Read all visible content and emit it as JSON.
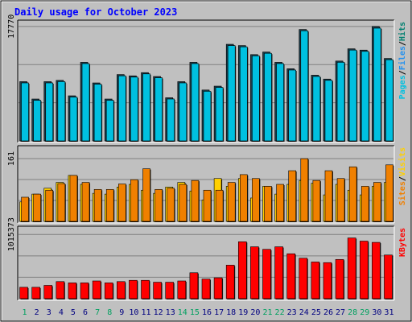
{
  "chart_data": {
    "type": "bar",
    "title": "Daily usage for October 2023",
    "categories": [
      "1",
      "2",
      "3",
      "4",
      "5",
      "6",
      "7",
      "8",
      "9",
      "10",
      "11",
      "12",
      "13",
      "14",
      "15",
      "16",
      "17",
      "18",
      "19",
      "20",
      "21",
      "22",
      "23",
      "24",
      "25",
      "26",
      "27",
      "28",
      "29",
      "30",
      "31"
    ],
    "weekend_days": [
      "1",
      "7",
      "8",
      "14",
      "15",
      "21",
      "22",
      "28",
      "29"
    ],
    "colors": {
      "pages": "#00c0e0",
      "files": "#2090f0",
      "hits": "#008070",
      "sites": "#f08000",
      "visits": "#ffd000",
      "kbytes": "#ff0000",
      "background": "#c0c0c0",
      "title": "#0000ff",
      "weekday_label": "#000080",
      "weekend_label": "#00a060"
    },
    "panels": [
      {
        "id": "hits-panel",
        "ytick_label": "17770",
        "ylim": [
          0,
          18500
        ],
        "ytick_value": 17770,
        "legend": [
          {
            "text": "Pages",
            "color": "#00c0e0"
          },
          {
            "text": "/",
            "color": "#000000"
          },
          {
            "text": "Files",
            "color": "#2090f0"
          },
          {
            "text": "/",
            "color": "#000000"
          },
          {
            "text": "Hits",
            "color": "#008070"
          }
        ],
        "series": [
          {
            "key": "hits",
            "color": "#1a3c4a",
            "values": [
              9200,
              6500,
              9200,
              9400,
              7000,
              12200,
              9000,
              6500,
              10300,
              10100,
              10600,
              10000,
              6700,
              9200,
              12200,
              7900,
              8500,
              15000,
              14800,
              13400,
              13800,
              12200,
              11200,
              17300,
              10200,
              9600,
              12400,
              14300,
              14100,
              17770,
              12800
            ]
          },
          {
            "key": "files",
            "color": "#00c0e0",
            "values": [
              9000,
              6300,
              9000,
              9200,
              6800,
              12000,
              8800,
              6300,
              10100,
              9900,
              10400,
              9800,
              6500,
              9000,
              12000,
              7700,
              8300,
              14800,
              14600,
              13200,
              13600,
              12000,
              11000,
              17100,
              10000,
              9400,
              12200,
              14100,
              13900,
              17500,
              12600
            ]
          }
        ]
      },
      {
        "id": "visits-panel",
        "ytick_label": "161",
        "ylim": [
          0,
          190
        ],
        "ytick_value": 161,
        "legend": [
          {
            "text": "Sites",
            "color": "#f08000"
          },
          {
            "text": "/",
            "color": "#000000"
          },
          {
            "text": "Visits",
            "color": "#ffd000"
          }
        ],
        "series": [
          {
            "key": "visits",
            "color": "#ffd000",
            "values": [
              50,
              70,
              85,
              100,
              118,
              95,
              72,
              70,
              88,
              95,
              80,
              72,
              88,
              100,
              78,
              55,
              110,
              90,
              110,
              60,
              90,
              70,
              95,
              105,
              98,
              68,
              95,
              80,
              68,
              90,
              100
            ]
          },
          {
            "key": "sites",
            "color": "#f08000",
            "values": [
              62,
              70,
              80,
              97,
              118,
              100,
              82,
              82,
              96,
              107,
              135,
              82,
              85,
              95,
              105,
              80,
              80,
              100,
              120,
              110,
              90,
              95,
              130,
              161,
              105,
              130,
              110,
              140,
              90,
              100,
              145
            ]
          }
        ]
      },
      {
        "id": "kbytes-panel",
        "ytick_label": "1015373",
        "ylim": [
          0,
          1120000
        ],
        "ytick_value": 1015373,
        "legend": [
          {
            "text": "KBytes",
            "color": "#ff0000"
          }
        ],
        "series": [
          {
            "key": "kbytes",
            "color": "#ff0000",
            "values": [
              180000,
              180000,
              210000,
              270000,
              250000,
              250000,
              280000,
              250000,
              270000,
              290000,
              290000,
              260000,
              260000,
              280000,
              410000,
              310000,
              330000,
              530000,
              900000,
              820000,
              780000,
              820000,
              710000,
              640000,
              580000,
              570000,
              620000,
              960000,
              910000,
              890000,
              690000
            ]
          }
        ]
      }
    ]
  }
}
